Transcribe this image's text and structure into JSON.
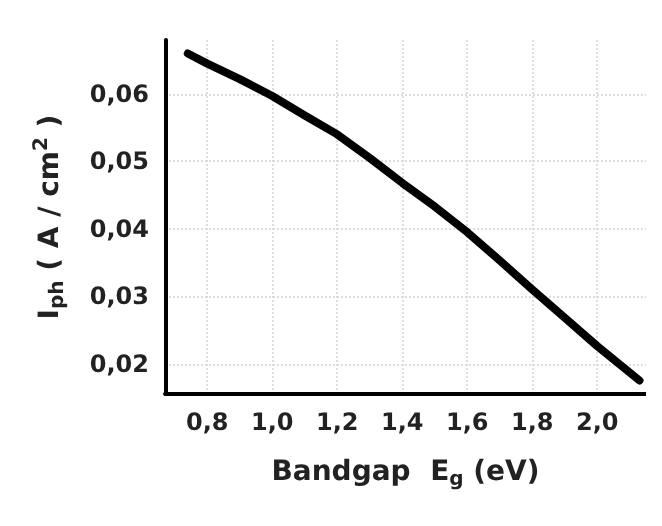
{
  "chart_data": {
    "type": "line",
    "xlabel": "Bandgap  E$_{g}$ (eV)",
    "ylabel": "I$_{ph}$ ( A / cm$^{2}$ )",
    "x": [
      0.74,
      0.8,
      0.9,
      1.0,
      1.1,
      1.2,
      1.3,
      1.4,
      1.5,
      1.6,
      1.7,
      1.8,
      1.9,
      2.0,
      2.13
    ],
    "series": [
      {
        "color": "#000000",
        "values": [
          0.066,
          0.0645,
          0.0622,
          0.0597,
          0.0568,
          0.054,
          0.0505,
          0.0468,
          0.0433,
          0.0395,
          0.0353,
          0.031,
          0.0268,
          0.0226,
          0.0175
        ]
      }
    ],
    "xlim": [
      0.67,
      2.15
    ],
    "ylim": [
      0.0155,
      0.068
    ],
    "xticks": [
      {
        "value": 0.8,
        "label": "0,8"
      },
      {
        "value": 1.0,
        "label": "1,0"
      },
      {
        "value": 1.2,
        "label": "1,2"
      },
      {
        "value": 1.4,
        "label": "1,4"
      },
      {
        "value": 1.6,
        "label": "1,6"
      },
      {
        "value": 1.8,
        "label": "1,8"
      },
      {
        "value": 2.0,
        "label": "2,0"
      }
    ],
    "yticks": [
      {
        "value": 0.02,
        "label": "0,02"
      },
      {
        "value": 0.03,
        "label": "0,03"
      },
      {
        "value": 0.04,
        "label": "0,04"
      },
      {
        "value": 0.05,
        "label": "0,05"
      },
      {
        "value": 0.06,
        "label": "0,06"
      }
    ],
    "grid": true,
    "marker": "none",
    "line_style": "solid"
  }
}
